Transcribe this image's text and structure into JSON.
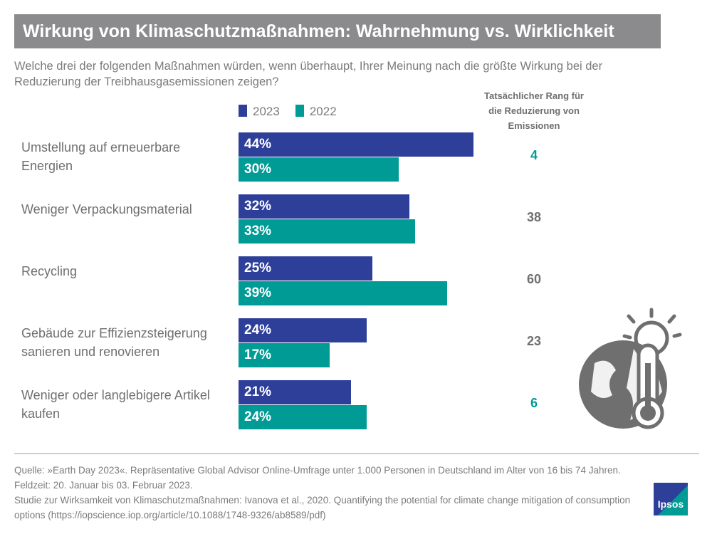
{
  "title": "Wirkung von Klimaschutzmaßnahmen: Wahrnehmung vs. Wirklichkeit",
  "subtitle": "Welche drei der folgenden Maßnahmen würden, wenn überhaupt, Ihrer Meinung nach die größte Wirkung bei der Reduzierung der Treibhausgasemissionen zeigen?",
  "rank_header": "Tatsächlicher Rang für die Reduzierung von Emissionen",
  "colors": {
    "2023": "#2e3f99",
    "2022": "#009b95",
    "rank_highlight": "#009b95",
    "rank_default": "#6f6f6f",
    "title_bg": "#8b8b8d"
  },
  "chart_data": {
    "type": "bar",
    "orientation": "horizontal",
    "categories": [
      "Umstellung auf erneuerbare Energien",
      "Weniger Verpackungsmaterial",
      "Recycling",
      "Gebäude zur Effizienzsteigerung sanieren und renovieren",
      "Weniger oder langlebigere Artikel kaufen"
    ],
    "series": [
      {
        "name": "2023",
        "values": [
          44,
          32,
          25,
          24,
          21
        ],
        "labels": [
          "44%",
          "32%",
          "25%",
          "24%",
          "21%"
        ]
      },
      {
        "name": "2022",
        "values": [
          30,
          33,
          39,
          17,
          24
        ],
        "labels": [
          "30%",
          "33%",
          "39%",
          "17%",
          "24%"
        ]
      }
    ],
    "ranks": [
      "4",
      "38",
      "60",
      "23",
      "6"
    ],
    "rank_highlighted": [
      true,
      false,
      false,
      false,
      true
    ],
    "unit": "%",
    "legend": "top",
    "grid": false
  },
  "footer": {
    "source": "Quelle: »Earth Day 2023«. Repräsentative Global Advisor Online-Umfrage unter 1.000 Personen in Deutschland im Alter von 16 bis 74 Jahren. Feldzeit: 20. Januar bis 03. Februar 2023.",
    "study": "Studie zur Wirksamkeit von Klimaschutzmaßnahmen: Ivanova et al., 2020. Quantifying the potential for climate change mitigation of consumption options (https://iopscience.iop.org/article/10.1088/1748-9326/ab8589/pdf)"
  },
  "logo": "Ipsos",
  "icon": "globe-thermometer-sun-icon"
}
